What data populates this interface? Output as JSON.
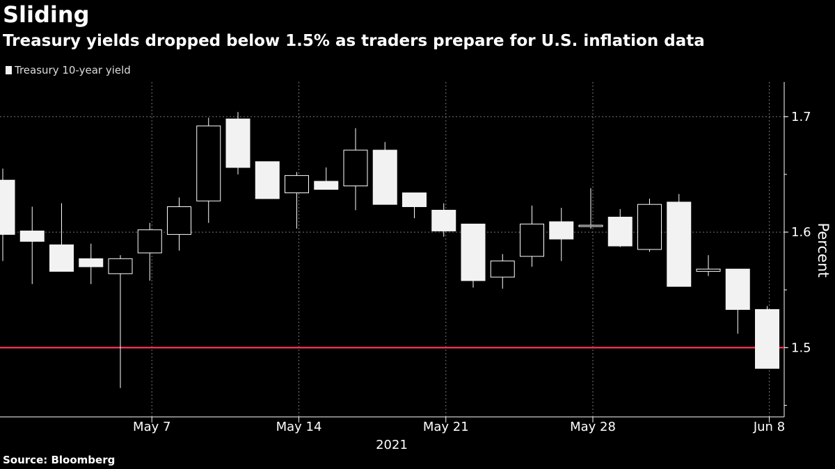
{
  "header": {
    "title": "Sliding",
    "subtitle": "Treasury yields dropped below 1.5% as traders prepare for U.S. inflation data"
  },
  "footer": {
    "source": "Source: Bloomberg"
  },
  "colors": {
    "background": "#000000",
    "candle": "#f2f2f2",
    "reference_line": "#e8314f",
    "grid": "#777777"
  },
  "chart_data": {
    "type": "candlestick",
    "title": "Sliding",
    "subtitle": "Treasury yields dropped below 1.5% as traders prepare for U.S. inflation data",
    "series_name": "Treasury 10-year yield",
    "ylabel": "Percent",
    "year_label": "2021",
    "ylim": [
      1.44,
      1.73
    ],
    "yticks": [
      1.5,
      1.6,
      1.7
    ],
    "reference_line": 1.5,
    "grid": true,
    "legend_position": "top-left",
    "xtick_labels": [
      {
        "label": "May 7",
        "date": "2021-05-07"
      },
      {
        "label": "May 14",
        "date": "2021-05-14"
      },
      {
        "label": "May 21",
        "date": "2021-05-21"
      },
      {
        "label": "May 28",
        "date": "2021-05-28"
      },
      {
        "label": "Jun 8",
        "date": "2021-06-08"
      }
    ],
    "candles": [
      {
        "date": "2021-04-30",
        "open": 1.645,
        "close": 1.598,
        "high": 1.655,
        "low": 1.575
      },
      {
        "date": "2021-05-03",
        "open": 1.601,
        "close": 1.592,
        "high": 1.622,
        "low": 1.555
      },
      {
        "date": "2021-05-04",
        "open": 1.589,
        "close": 1.566,
        "high": 1.625,
        "low": 1.566
      },
      {
        "date": "2021-05-05",
        "open": 1.577,
        "close": 1.57,
        "high": 1.59,
        "low": 1.555
      },
      {
        "date": "2021-05-06",
        "open": 1.564,
        "close": 1.577,
        "high": 1.58,
        "low": 1.465
      },
      {
        "date": "2021-05-07",
        "open": 1.582,
        "close": 1.602,
        "high": 1.608,
        "low": 1.558
      },
      {
        "date": "2021-05-10",
        "open": 1.598,
        "close": 1.622,
        "high": 1.63,
        "low": 1.584
      },
      {
        "date": "2021-05-11",
        "open": 1.627,
        "close": 1.692,
        "high": 1.699,
        "low": 1.608
      },
      {
        "date": "2021-05-12",
        "open": 1.698,
        "close": 1.656,
        "high": 1.704,
        "low": 1.65
      },
      {
        "date": "2021-05-13",
        "open": 1.661,
        "close": 1.629,
        "high": 1.661,
        "low": 1.629
      },
      {
        "date": "2021-05-14",
        "open": 1.634,
        "close": 1.649,
        "high": 1.652,
        "low": 1.603
      },
      {
        "date": "2021-05-17",
        "open": 1.644,
        "close": 1.637,
        "high": 1.656,
        "low": 1.637
      },
      {
        "date": "2021-05-18",
        "open": 1.64,
        "close": 1.671,
        "high": 1.69,
        "low": 1.619
      },
      {
        "date": "2021-05-19",
        "open": 1.671,
        "close": 1.624,
        "high": 1.678,
        "low": 1.624
      },
      {
        "date": "2021-05-20",
        "open": 1.634,
        "close": 1.622,
        "high": 1.634,
        "low": 1.612
      },
      {
        "date": "2021-05-21",
        "open": 1.619,
        "close": 1.601,
        "high": 1.625,
        "low": 1.596
      },
      {
        "date": "2021-05-24",
        "open": 1.607,
        "close": 1.558,
        "high": 1.607,
        "low": 1.552
      },
      {
        "date": "2021-05-25",
        "open": 1.561,
        "close": 1.575,
        "high": 1.581,
        "low": 1.551
      },
      {
        "date": "2021-05-26",
        "open": 1.579,
        "close": 1.607,
        "high": 1.623,
        "low": 1.57
      },
      {
        "date": "2021-05-27",
        "open": 1.609,
        "close": 1.594,
        "high": 1.621,
        "low": 1.575
      },
      {
        "date": "2021-05-28",
        "open": 1.606,
        "close": 1.606,
        "high": 1.638,
        "low": 1.603
      },
      {
        "date": "2021-06-01",
        "open": 1.613,
        "close": 1.588,
        "high": 1.62,
        "low": 1.587
      },
      {
        "date": "2021-06-02",
        "open": 1.585,
        "close": 1.624,
        "high": 1.629,
        "low": 1.583
      },
      {
        "date": "2021-06-03",
        "open": 1.626,
        "close": 1.553,
        "high": 1.633,
        "low": 1.553
      },
      {
        "date": "2021-06-04",
        "open": 1.566,
        "close": 1.568,
        "high": 1.58,
        "low": 1.562
      },
      {
        "date": "2021-06-07",
        "open": 1.568,
        "close": 1.533,
        "high": 1.568,
        "low": 1.512
      },
      {
        "date": "2021-06-08",
        "open": 1.533,
        "close": 1.482,
        "high": 1.536,
        "low": 1.482
      }
    ]
  }
}
